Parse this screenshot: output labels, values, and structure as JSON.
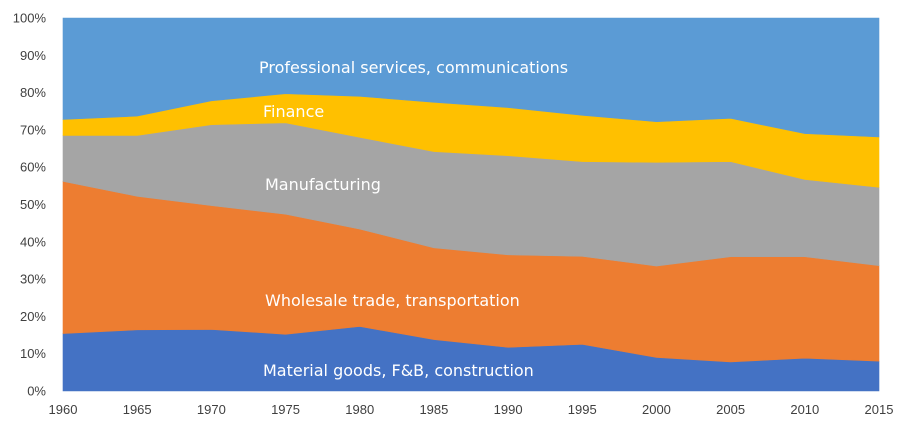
{
  "chart_data": {
    "type": "area",
    "stacked": true,
    "title": "",
    "xlabel": "",
    "ylabel": "",
    "x": [
      "1960",
      "1965",
      "1970",
      "1975",
      "1980",
      "1985",
      "1990",
      "1995",
      "2000",
      "2005",
      "2010",
      "2015"
    ],
    "y_tick_labels": [
      "0%",
      "10%",
      "20%",
      "30%",
      "40%",
      "50%",
      "60%",
      "70%",
      "80%",
      "90%",
      "100%"
    ],
    "ylim": [
      0,
      100
    ],
    "grid": false,
    "legend": "none",
    "series": [
      {
        "name": "Material goods, F&B, construction",
        "color": "#4472c4",
        "values": [
          15.4,
          16.4,
          16.5,
          15.2,
          17.3,
          13.8,
          11.7,
          12.5,
          9.0,
          7.8,
          8.8,
          8.0
        ]
      },
      {
        "name": "Wholesale trade, transportation",
        "color": "#ed7d31",
        "values": [
          40.8,
          35.8,
          33.2,
          32.2,
          26.1,
          24.6,
          24.8,
          23.6,
          24.5,
          28.2,
          27.2,
          25.6
        ]
      },
      {
        "name": "Manufacturing",
        "color": "#a5a5a5",
        "values": [
          12.3,
          16.3,
          21.7,
          24.5,
          24.6,
          25.8,
          26.6,
          25.4,
          27.8,
          25.5,
          20.7,
          21.0
        ]
      },
      {
        "name": "Finance",
        "color": "#ffc000",
        "values": [
          4.3,
          5.2,
          6.4,
          7.8,
          11.0,
          13.2,
          12.9,
          12.4,
          10.9,
          11.6,
          12.3,
          13.5
        ]
      },
      {
        "name": "Professional services, communications",
        "color": "#5b9bd5",
        "values": [
          27.2,
          26.3,
          22.2,
          20.3,
          21.0,
          22.6,
          24.0,
          26.1,
          27.8,
          26.9,
          31.0,
          31.9
        ]
      }
    ]
  }
}
